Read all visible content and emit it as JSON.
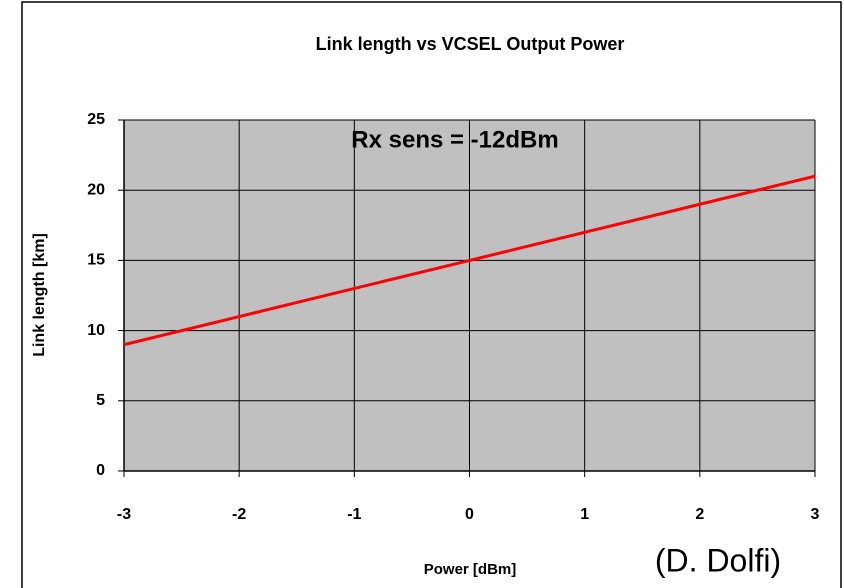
{
  "chart_data": {
    "type": "line",
    "title": "Link length vs VCSEL Output Power",
    "x_label": "Power [dBm]",
    "y_label": "Link length [km]",
    "annotations": [
      "Rx sens = -12dBm",
      "(D. Dolfi)"
    ],
    "x": [
      -3,
      -2,
      -1,
      0,
      1,
      2,
      3
    ],
    "series": [
      {
        "name": "Link length",
        "color": "#ff0000",
        "values": [
          9,
          11,
          13,
          15,
          17,
          19,
          21
        ]
      }
    ],
    "xlim": [
      -3,
      3
    ],
    "xticks": [
      -3,
      -2,
      -1,
      0,
      1,
      2,
      3
    ],
    "ylim": [
      0,
      25
    ],
    "yticks": [
      0,
      5,
      10,
      15,
      20,
      25
    ],
    "grid": true
  }
}
